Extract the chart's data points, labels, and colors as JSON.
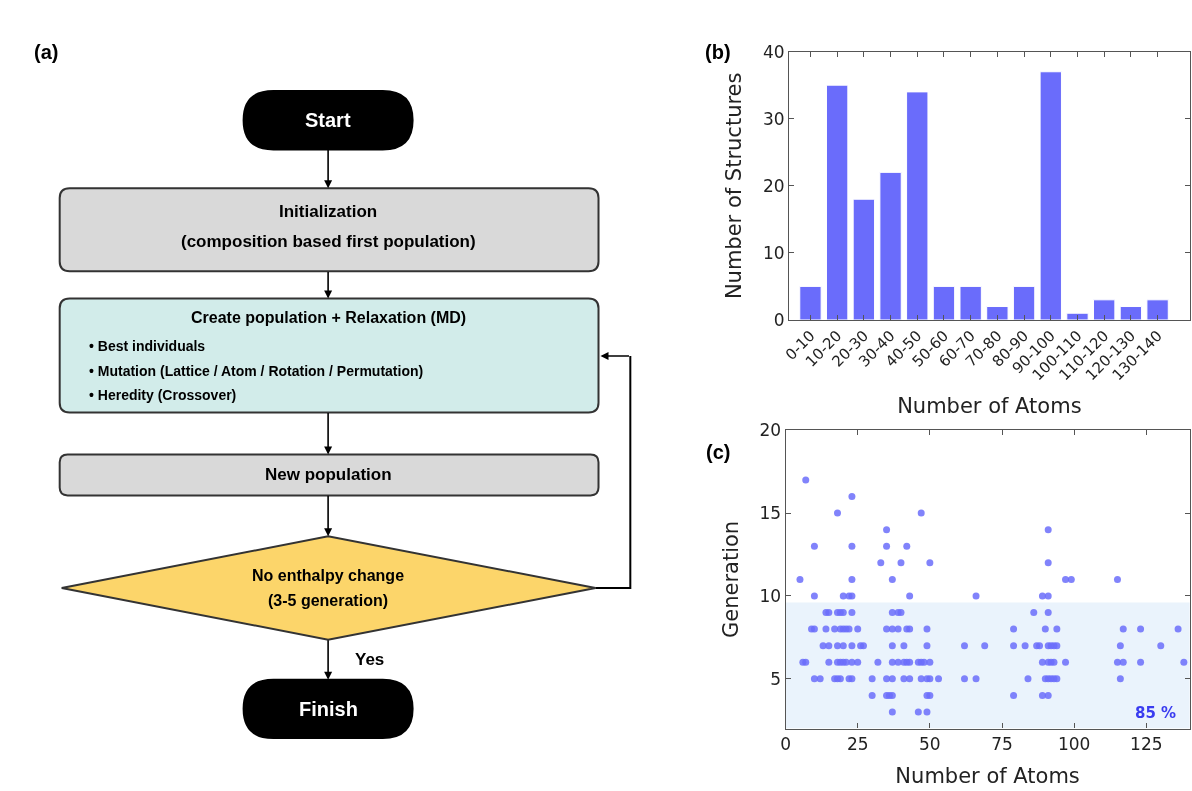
{
  "chart_data": [
    {
      "type": "other",
      "title": "(a)",
      "annotations": [
        "Start",
        "Initialization",
        "(composition based first population)",
        "Create population + Relaxation (MD)",
        "• Best individuals",
        "• Mutation (Lattice / Atom / Rotation / Permutation)",
        "• Heredity (Crossover)",
        "New population",
        "No enthalpy change",
        "(3-5 generation)",
        "Yes",
        "Finish"
      ]
    },
    {
      "type": "bar",
      "title": "(b)",
      "xlabel": "Number of Atoms",
      "ylabel": "Number of Structures",
      "categories": [
        "0-10",
        "10-20",
        "20-30",
        "30-40",
        "40-50",
        "50-60",
        "60-70",
        "70-80",
        "80-90",
        "90-100",
        "100-110",
        "110-120",
        "120-130",
        "130-140"
      ],
      "values": [
        5,
        35,
        18,
        22,
        34,
        5,
        5,
        2,
        5,
        37,
        1,
        3,
        2,
        3
      ],
      "color": "#6a6cfb",
      "ylim": [
        0,
        40
      ],
      "yticks": [
        0,
        10,
        20,
        30,
        40
      ],
      "grid": false
    },
    {
      "type": "scatter",
      "title": "(c)",
      "xlabel": "Number of Atoms",
      "ylabel": "Generation",
      "x": [
        7,
        23,
        18,
        47,
        35,
        91,
        10,
        23,
        35,
        42,
        33,
        40,
        50,
        91,
        5,
        23,
        37,
        97,
        99,
        115,
        10,
        20,
        22,
        23,
        43,
        66,
        89,
        91,
        14,
        15,
        18,
        19,
        20,
        23,
        37,
        39,
        40,
        86,
        91,
        9,
        10,
        14,
        17,
        19,
        20,
        21,
        22,
        25,
        35,
        37,
        39,
        42,
        43,
        49,
        79,
        90,
        94,
        117,
        123,
        136,
        13,
        15,
        18,
        20,
        23,
        26,
        27,
        37,
        41,
        49,
        62,
        69,
        79,
        83,
        87,
        88,
        91,
        92,
        93,
        94,
        116,
        130,
        6,
        7,
        15,
        18,
        19,
        20,
        21,
        23,
        25,
        32,
        37,
        39,
        41,
        42,
        43,
        46,
        47,
        48,
        50,
        89,
        91,
        92,
        93,
        97,
        115,
        117,
        123,
        138,
        10,
        12,
        17,
        18,
        19,
        22,
        23,
        30,
        35,
        37,
        41,
        43,
        47,
        49,
        50,
        53,
        62,
        66,
        84,
        90,
        91,
        92,
        93,
        94,
        116,
        30,
        35,
        36,
        37,
        49,
        50,
        79,
        89,
        91,
        37,
        46,
        49
      ],
      "values": [
        17,
        16,
        15,
        15,
        14,
        14,
        13,
        13,
        13,
        13,
        12,
        12,
        12,
        12,
        11,
        11,
        11,
        11,
        11,
        11,
        10,
        10,
        10,
        10,
        10,
        10,
        10,
        10,
        9,
        9,
        9,
        9,
        9,
        9,
        9,
        9,
        9,
        9,
        9,
        8,
        8,
        8,
        8,
        8,
        8,
        8,
        8,
        8,
        8,
        8,
        8,
        8,
        8,
        8,
        8,
        8,
        8,
        8,
        8,
        8,
        7,
        7,
        7,
        7,
        7,
        7,
        7,
        7,
        7,
        7,
        7,
        7,
        7,
        7,
        7,
        7,
        7,
        7,
        7,
        7,
        7,
        7,
        6,
        6,
        6,
        6,
        6,
        6,
        6,
        6,
        6,
        6,
        6,
        6,
        6,
        6,
        6,
        6,
        6,
        6,
        6,
        6,
        6,
        6,
        6,
        6,
        6,
        6,
        6,
        6,
        5,
        5,
        5,
        5,
        5,
        5,
        5,
        5,
        5,
        5,
        5,
        5,
        5,
        5,
        5,
        5,
        5,
        5,
        5,
        5,
        5,
        5,
        5,
        5,
        5,
        4,
        4,
        4,
        4,
        4,
        4,
        4,
        4,
        4,
        3,
        3,
        3
      ],
      "color": "#6b6dfa",
      "marker": "circle",
      "xlim": [
        0,
        140
      ],
      "ylim": [
        2,
        20
      ],
      "xticks": [
        0,
        25,
        50,
        75,
        100,
        125
      ],
      "yticks": [
        5,
        10,
        15,
        20
      ],
      "grid": false,
      "bands": [
        {
          "axis": "y",
          "from": 2,
          "to": 9.6,
          "label": "85 %",
          "color": "#eaf3fc"
        }
      ]
    }
  ]
}
